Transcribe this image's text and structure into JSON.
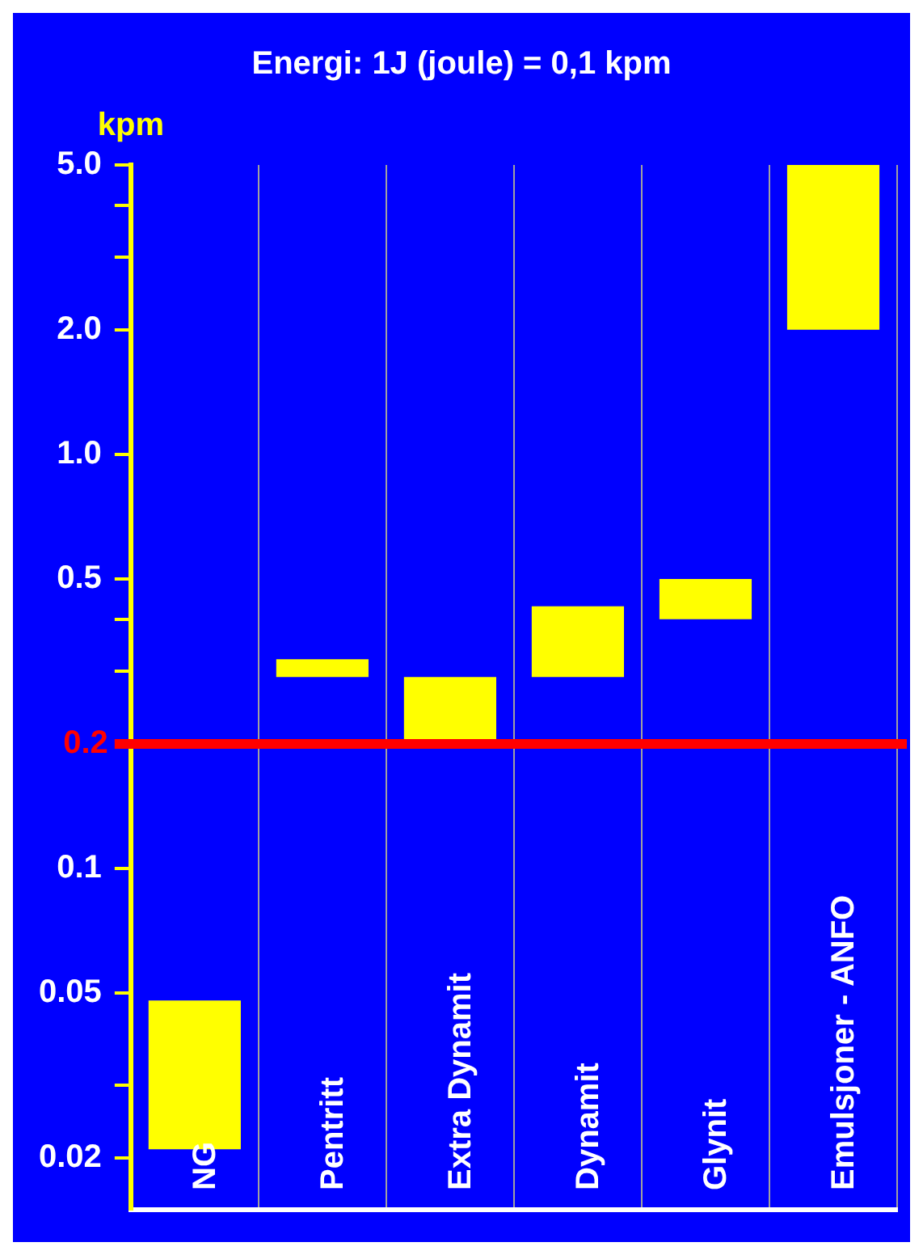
{
  "chart_data": {
    "type": "bar",
    "title": "Energi: 1J (joule) = 0,1 kpm",
    "ylabel": "kpm",
    "categories": [
      "NG",
      "Pentritt",
      "Extra Dynamit",
      "Dynamit",
      "Glynit",
      "Emulsjoner - ANFO"
    ],
    "base": [
      0.021,
      0.29,
      0.2,
      0.29,
      0.4,
      2.0
    ],
    "values": [
      0.027,
      0.03,
      0.09,
      0.14,
      0.1,
      3.0
    ],
    "color": "#ffff00",
    "log": true,
    "ylim": [
      0.015,
      5
    ],
    "yticks": [
      {
        "value": 5,
        "label": "5.0"
      },
      {
        "value": 4,
        "label": null
      },
      {
        "value": 3,
        "label": null
      },
      {
        "value": 2,
        "label": "2.0"
      },
      {
        "value": 1,
        "label": "1.0"
      },
      0.5,
      {
        "value": 0.4,
        "label": null
      },
      {
        "value": 0.3,
        "label": null
      },
      0.1,
      0.05,
      {
        "value": 0.03,
        "label": null
      },
      0.02
    ],
    "ref_lines": [
      {
        "axis": "y",
        "value": 0.2,
        "label": "0.2",
        "color": "#ff0000"
      }
    ],
    "grid": "x",
    "legend": false
  }
}
